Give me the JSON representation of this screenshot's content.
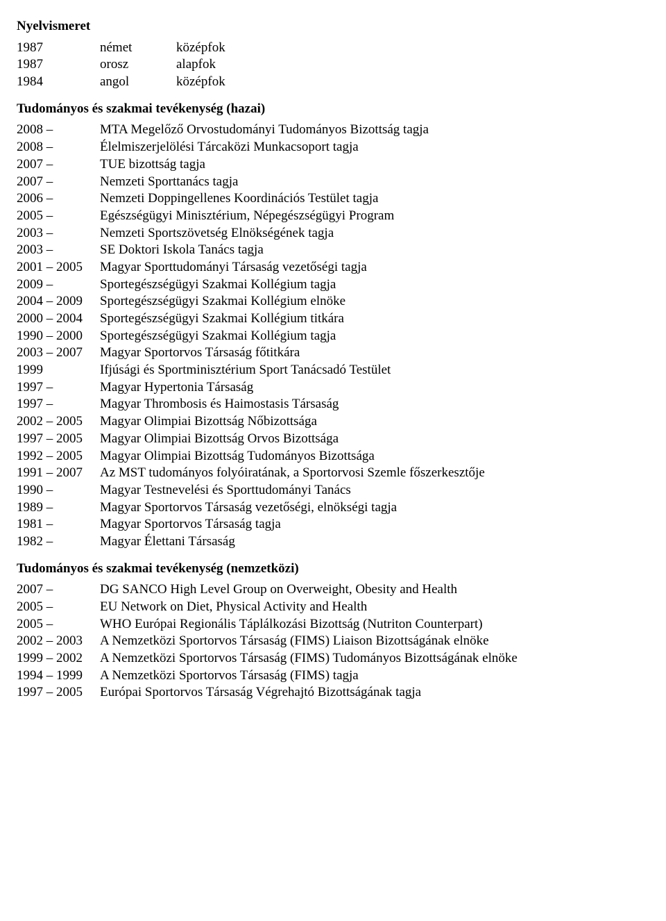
{
  "section1": {
    "title": "Nyelvismeret",
    "rows": [
      {
        "year": "1987",
        "lang": "német",
        "level": "középfok"
      },
      {
        "year": "1987",
        "lang": "orosz",
        "level": "alapfok"
      },
      {
        "year": "1984",
        "lang": "angol",
        "level": "középfok"
      }
    ]
  },
  "section2": {
    "title": "Tudományos és szakmai tevékenység (hazai)",
    "rows": [
      {
        "year": "2008 –",
        "text": "MTA Megelőző Orvostudományi Tudományos Bizottság tagja"
      },
      {
        "year": "2008 –",
        "text": "Élelmiszerjelölési Tárcaközi Munkacsoport tagja"
      },
      {
        "year": "2007 –",
        "text": "TUE bizottság tagja"
      },
      {
        "year": "2007 –",
        "text": "Nemzeti Sporttanács tagja"
      },
      {
        "year": "2006 –",
        "text": "Nemzeti Doppingellenes Koordinációs Testület tagja"
      },
      {
        "year": "2005 –",
        "text": "Egészségügyi Minisztérium, Népegészségügyi Program"
      },
      {
        "year": "2003 –",
        "text": "Nemzeti Sportszövetség Elnökségének tagja"
      },
      {
        "year": "2003 –",
        "text": "SE Doktori Iskola Tanács tagja"
      },
      {
        "year": "2001 – 2005",
        "text": "Magyar Sporttudományi Társaság vezetőségi tagja"
      },
      {
        "year": "2009 –",
        "text": "Sportegészségügyi Szakmai Kollégium tagja"
      },
      {
        "year": "2004 – 2009",
        "text": "Sportegészségügyi Szakmai Kollégium elnöke"
      },
      {
        "year": "2000 – 2004",
        "text": "Sportegészségügyi Szakmai Kollégium titkára"
      },
      {
        "year": "1990 – 2000",
        "text": "Sportegészségügyi Szakmai Kollégium tagja"
      },
      {
        "year": "2003 – 2007",
        "text": "Magyar Sportorvos Társaság főtitkára"
      },
      {
        "year": "1999",
        "text": "Ifjúsági és Sportminisztérium Sport Tanácsadó Testület"
      },
      {
        "year": "1997 –",
        "text": "Magyar Hypertonia Társaság"
      },
      {
        "year": "1997 –",
        "text": "Magyar Thrombosis és Haimostasis Társaság"
      },
      {
        "year": "2002 – 2005",
        "text": "Magyar Olimpiai Bizottság Nőbizottsága"
      },
      {
        "year": "1997 – 2005",
        "text": "Magyar Olimpiai Bizottság Orvos Bizottsága"
      },
      {
        "year": "1992 – 2005",
        "text": "Magyar Olimpiai Bizottság Tudományos Bizottsága"
      },
      {
        "year": "1991 – 2007",
        "text": "Az MST tudományos folyóiratának, a Sportorvosi Szemle főszerkesztője"
      },
      {
        "year": "1990 –",
        "text": "Magyar Testnevelési és Sporttudományi Tanács"
      },
      {
        "year": "1989 –",
        "text": "Magyar Sportorvos Társaság vezetőségi, elnökségi tagja"
      },
      {
        "year": "1981 –",
        "text": "Magyar Sportorvos Társaság tagja"
      },
      {
        "year": "1982 –",
        "text": "Magyar Élettani Társaság"
      }
    ]
  },
  "section3": {
    "title": "Tudományos és szakmai tevékenység (nemzetközi)",
    "rows": [
      {
        "year": "2007 –",
        "text": "DG SANCO High Level Group on Overweight, Obesity and Health"
      },
      {
        "year": "2005 –",
        "text": "EU Network on Diet, Physical Activity and Health"
      },
      {
        "year": "2005 –",
        "text": "WHO Európai Regionális Táplálkozási Bizottság (Nutriton Counterpart)"
      },
      {
        "year": "2002 – 2003",
        "text": "A Nemzetközi Sportorvos Társaság (FIMS) Liaison Bizottságának elnöke"
      },
      {
        "year": "1999 – 2002",
        "text": "A Nemzetközi Sportorvos Társaság (FIMS) Tudományos Bizottságának elnöke"
      },
      {
        "year": "1994 – 1999",
        "text": "A Nemzetközi Sportorvos Társaság (FIMS) tagja"
      },
      {
        "year": "1997 – 2005",
        "text": "Európai Sportorvos Társaság Végrehajtó Bizottságának tagja"
      }
    ]
  }
}
